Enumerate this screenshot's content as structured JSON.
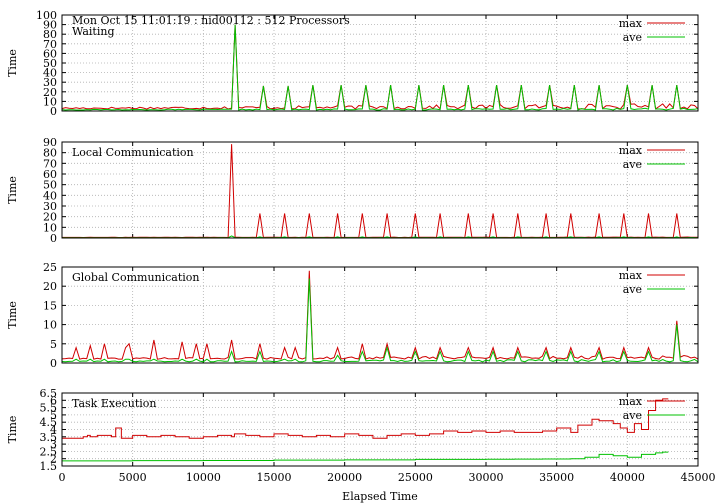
{
  "header": "Mon Oct 15 11:01:19 : nid00112 : 512 Processors",
  "xlabel": "Elapsed Time",
  "colors": {
    "max": "#d00000",
    "ave": "#00c000",
    "grid": "#b0b0b0"
  },
  "legend": [
    "max",
    "ave"
  ],
  "chart_data": [
    {
      "type": "line",
      "title": "Waiting",
      "ylabel": "Time",
      "xlim": [
        0,
        45000
      ],
      "ylim": [
        0,
        100
      ],
      "yticks": [
        0,
        10,
        20,
        30,
        40,
        50,
        60,
        70,
        80,
        90,
        100
      ],
      "grid": true,
      "legend_position": "top-right",
      "baseline": {
        "max": [
          2,
          8
        ],
        "ave": [
          1,
          3
        ]
      },
      "spikes": [
        {
          "x": 12300,
          "max": 90,
          "ave": 90
        },
        {
          "x": 14200,
          "max": 26,
          "ave": 26
        },
        {
          "x": 16000,
          "max": 26,
          "ave": 26
        },
        {
          "x": 17800,
          "max": 27,
          "ave": 27
        },
        {
          "x": 19700,
          "max": 27,
          "ave": 27
        },
        {
          "x": 21500,
          "max": 27,
          "ave": 27
        },
        {
          "x": 23300,
          "max": 27,
          "ave": 27
        },
        {
          "x": 25200,
          "max": 27,
          "ave": 27
        },
        {
          "x": 27000,
          "max": 27,
          "ave": 27
        },
        {
          "x": 28800,
          "max": 27,
          "ave": 27
        },
        {
          "x": 30700,
          "max": 27,
          "ave": 27
        },
        {
          "x": 32500,
          "max": 27,
          "ave": 27
        },
        {
          "x": 34400,
          "max": 27,
          "ave": 27
        },
        {
          "x": 36200,
          "max": 27,
          "ave": 27
        },
        {
          "x": 38000,
          "max": 27,
          "ave": 27
        },
        {
          "x": 39900,
          "max": 27,
          "ave": 27
        },
        {
          "x": 41700,
          "max": 27,
          "ave": 27
        },
        {
          "x": 43600,
          "max": 27,
          "ave": 27
        }
      ],
      "series": [
        {
          "name": "max"
        },
        {
          "name": "ave"
        }
      ]
    },
    {
      "type": "line",
      "title": "Local Communication",
      "ylabel": "Time",
      "xlim": [
        0,
        45000
      ],
      "ylim": [
        0,
        90
      ],
      "yticks": [
        0,
        10,
        20,
        30,
        40,
        50,
        60,
        70,
        80,
        90
      ],
      "grid": true,
      "legend_position": "top-right",
      "baseline": {
        "max": [
          0.5,
          1
        ],
        "ave": [
          0.2,
          0.5
        ]
      },
      "spikes": [
        {
          "x": 12100,
          "max": 88,
          "ave": 2
        },
        {
          "x": 13900,
          "max": 23,
          "ave": 1
        },
        {
          "x": 15800,
          "max": 23,
          "ave": 1
        },
        {
          "x": 17600,
          "max": 23,
          "ave": 1
        },
        {
          "x": 19500,
          "max": 23,
          "ave": 1
        },
        {
          "x": 21300,
          "max": 23,
          "ave": 1
        },
        {
          "x": 23100,
          "max": 23,
          "ave": 1
        },
        {
          "x": 25000,
          "max": 23,
          "ave": 1
        },
        {
          "x": 26800,
          "max": 23,
          "ave": 1
        },
        {
          "x": 28700,
          "max": 23,
          "ave": 1
        },
        {
          "x": 30500,
          "max": 23,
          "ave": 1
        },
        {
          "x": 32300,
          "max": 23,
          "ave": 1
        },
        {
          "x": 34200,
          "max": 23,
          "ave": 1
        },
        {
          "x": 36000,
          "max": 23,
          "ave": 1
        },
        {
          "x": 37900,
          "max": 23,
          "ave": 1
        },
        {
          "x": 39700,
          "max": 23,
          "ave": 1
        },
        {
          "x": 41500,
          "max": 23,
          "ave": 1
        },
        {
          "x": 43400,
          "max": 23,
          "ave": 1
        }
      ],
      "series": [
        {
          "name": "max"
        },
        {
          "name": "ave"
        }
      ]
    },
    {
      "type": "line",
      "title": "Global Communication",
      "ylabel": "Time",
      "xlim": [
        0,
        45000
      ],
      "ylim": [
        0,
        25
      ],
      "yticks": [
        0,
        5,
        10,
        15,
        20,
        25
      ],
      "grid": true,
      "legend_position": "top-right",
      "baseline": {
        "max": [
          1,
          2
        ],
        "ave": [
          0.3,
          1
        ]
      },
      "spikes": [
        {
          "x": 1000,
          "max": 4,
          "ave": 1
        },
        {
          "x": 2000,
          "max": 4.5,
          "ave": 1
        },
        {
          "x": 3000,
          "max": 5,
          "ave": 1
        },
        {
          "x": 4400,
          "max": 4,
          "ave": 1
        },
        {
          "x": 4800,
          "max": 5,
          "ave": 1
        },
        {
          "x": 6600,
          "max": 6,
          "ave": 1
        },
        {
          "x": 8400,
          "max": 5.5,
          "ave": 1
        },
        {
          "x": 9500,
          "max": 5,
          "ave": 1
        },
        {
          "x": 10300,
          "max": 5,
          "ave": 1
        },
        {
          "x": 12100,
          "max": 6,
          "ave": 3
        },
        {
          "x": 14000,
          "max": 5,
          "ave": 3
        },
        {
          "x": 15800,
          "max": 4,
          "ave": 1
        },
        {
          "x": 16600,
          "max": 4,
          "ave": 1
        },
        {
          "x": 17600,
          "max": 24,
          "ave": 22
        },
        {
          "x": 19500,
          "max": 4,
          "ave": 2
        },
        {
          "x": 21300,
          "max": 5,
          "ave": 3
        },
        {
          "x": 23100,
          "max": 5,
          "ave": 4
        },
        {
          "x": 25000,
          "max": 4,
          "ave": 3
        },
        {
          "x": 26800,
          "max": 4,
          "ave": 3
        },
        {
          "x": 28700,
          "max": 4,
          "ave": 3
        },
        {
          "x": 30500,
          "max": 4,
          "ave": 3
        },
        {
          "x": 32300,
          "max": 4,
          "ave": 3
        },
        {
          "x": 34200,
          "max": 4,
          "ave": 3
        },
        {
          "x": 36000,
          "max": 4,
          "ave": 3
        },
        {
          "x": 37900,
          "max": 4,
          "ave": 3
        },
        {
          "x": 39700,
          "max": 4,
          "ave": 3
        },
        {
          "x": 41500,
          "max": 4,
          "ave": 3
        },
        {
          "x": 43600,
          "max": 11,
          "ave": 10
        }
      ],
      "series": [
        {
          "name": "max"
        },
        {
          "name": "ave"
        }
      ]
    },
    {
      "type": "line",
      "title": "Task Execution",
      "ylabel": "Time",
      "xlabel": "Elapsed Time",
      "xlim": [
        0,
        45000
      ],
      "ylim": [
        1.5,
        6.5
      ],
      "yticks": [
        1.5,
        2,
        2.5,
        3,
        3.5,
        4,
        4.5,
        5,
        5.5,
        6,
        6.5
      ],
      "xticks": [
        0,
        5000,
        10000,
        15000,
        20000,
        25000,
        30000,
        35000,
        40000,
        45000
      ],
      "grid": true,
      "legend_position": "top-right",
      "series": [
        {
          "name": "max",
          "x": [
            0,
            1500,
            1800,
            2000,
            2500,
            3500,
            3800,
            4200,
            5000,
            6000,
            7000,
            8000,
            9000,
            10000,
            11000,
            12000,
            12200,
            13000,
            14000,
            15000,
            16000,
            17000,
            18000,
            19000,
            20000,
            21000,
            22000,
            23000,
            24000,
            25000,
            26000,
            27000,
            28000,
            29000,
            30000,
            31000,
            32000,
            33000,
            34000,
            35000,
            36000,
            36500,
            37500,
            38000,
            39000,
            39500,
            40000,
            40500,
            41000,
            41500,
            42000,
            42500
          ],
          "y": [
            3.4,
            3.5,
            3.6,
            3.5,
            3.6,
            3.5,
            4.1,
            3.4,
            3.6,
            3.5,
            3.6,
            3.5,
            3.4,
            3.5,
            3.6,
            3.5,
            3.7,
            3.6,
            3.5,
            3.7,
            3.6,
            3.5,
            3.6,
            3.5,
            3.7,
            3.6,
            3.4,
            3.6,
            3.7,
            3.6,
            3.7,
            3.9,
            3.8,
            3.9,
            3.8,
            3.9,
            3.8,
            3.8,
            3.9,
            4.1,
            3.8,
            4.3,
            4.7,
            4.6,
            4.4,
            4.1,
            3.8,
            4.4,
            4.0,
            5.3,
            6.0,
            6.1
          ]
        },
        {
          "name": "ave",
          "x": [
            0,
            5000,
            10000,
            15000,
            20000,
            25000,
            30000,
            32000,
            34000,
            36000,
            37000,
            38000,
            39000,
            40000,
            41000,
            42000,
            42500
          ],
          "y": [
            1.85,
            1.87,
            1.88,
            1.9,
            1.92,
            1.95,
            1.96,
            1.97,
            1.98,
            2.0,
            2.1,
            2.3,
            2.2,
            2.1,
            2.3,
            2.4,
            2.45
          ]
        }
      ]
    }
  ]
}
